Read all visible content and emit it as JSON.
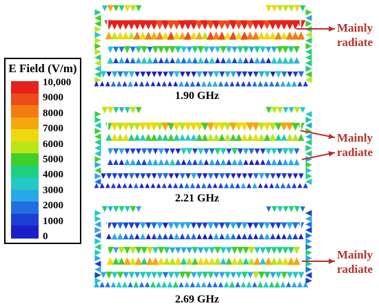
{
  "legend": {
    "title": "E Field (V/m)",
    "labels": [
      "10,000",
      "9000",
      "8000",
      "7000",
      "6000",
      "5000",
      "4000",
      "3000",
      "2000",
      "1000",
      "0"
    ],
    "colors": [
      "#e6201c",
      "#ef4a1a",
      "#f57c12",
      "#f5a70e",
      "#eed90f",
      "#b8e617",
      "#3fcf2b",
      "#1fd07f",
      "#22c9c5",
      "#2aa8e6",
      "#1f6fe0",
      "#1b3fd4",
      "#1a1fc8"
    ]
  },
  "panels": [
    {
      "frequency": "1.90 GHz",
      "annotation": [
        "Mainly",
        "radiate"
      ]
    },
    {
      "frequency": "2.21 GHz",
      "annotation": [
        "Mainly",
        "radiate"
      ]
    },
    {
      "frequency": "2.69 GHz",
      "annotation": [
        "Mainly",
        "radiate"
      ]
    }
  ],
  "colors": {
    "annotation": "#b8322a",
    "outline": "#ffffff"
  }
}
